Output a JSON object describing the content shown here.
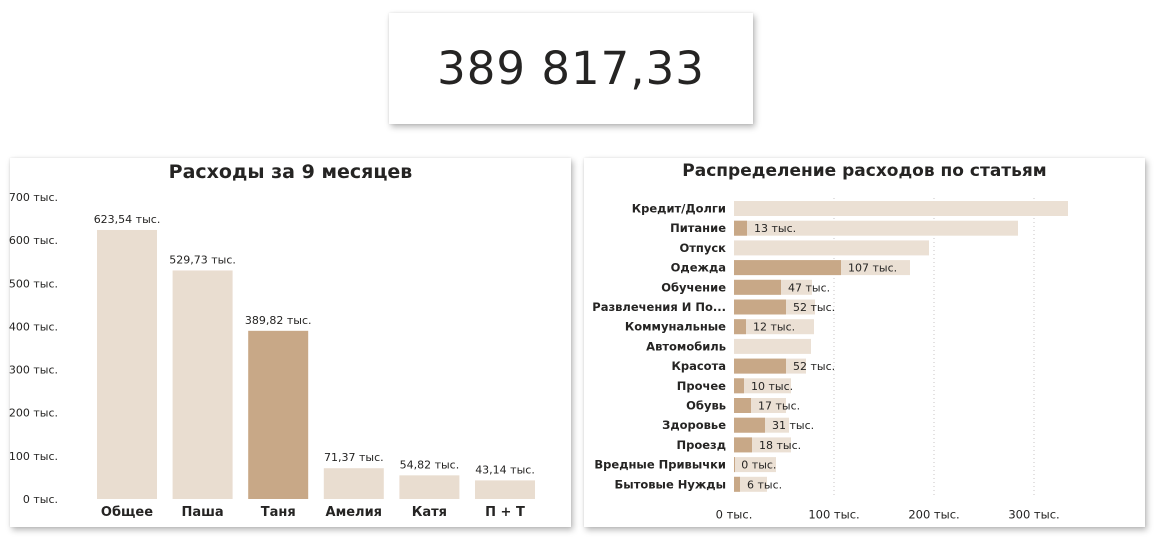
{
  "kpi": {
    "value": "389 817,33"
  },
  "chart_data": [
    {
      "type": "bar",
      "title": "Расходы за 9 месяцев",
      "categories": [
        "Общее",
        "Паша",
        "Таня",
        "Амелия",
        "Катя",
        "П + Т"
      ],
      "values": [
        623540,
        529730,
        389820,
        71370,
        54820,
        43140
      ],
      "data_labels": [
        "623,54 тыс.",
        "529,73 тыс.",
        "389,82 тыс.",
        "71,37 тыс.",
        "54,82 тыс.",
        "43,14 тыс."
      ],
      "highlighted_category": "Таня",
      "ylim": [
        0,
        700000
      ],
      "yticks": [
        0,
        100000,
        200000,
        300000,
        400000,
        500000,
        600000,
        700000
      ],
      "ytick_labels": [
        "0 тыс.",
        "100 тыс.",
        "200 тыс.",
        "300 тыс.",
        "400 тыс.",
        "500 тыс.",
        "600 тыс.",
        "700 тыс."
      ],
      "grid": false,
      "colors": {
        "base": "#e9ddd0",
        "highlight": "#c8a887"
      }
    },
    {
      "type": "bar",
      "orientation": "horizontal",
      "title": "Распределение расходов по статьям",
      "categories": [
        "Кредит/Долги",
        "Питание",
        "Отпуск",
        "Одежда",
        "Обучение",
        "Развлечения И По...",
        "Коммунальные",
        "Автомобиль",
        "Красота",
        "Прочее",
        "Обувь",
        "Здоровье",
        "Проезд",
        "Вредные Привычки",
        "Бытовые Нужды"
      ],
      "series": [
        {
          "role": "total",
          "values": [
            334000,
            284000,
            195000,
            176000,
            78000,
            81000,
            80000,
            77000,
            72000,
            57000,
            52000,
            55000,
            57000,
            42000,
            33000
          ]
        },
        {
          "role": "highlighted",
          "values": [
            0,
            13000,
            0,
            107000,
            47000,
            52000,
            12000,
            0,
            52000,
            10000,
            17000,
            31000,
            18000,
            300,
            6000
          ]
        }
      ],
      "data_labels": [
        "",
        "13 тыс.",
        "",
        "107 тыс.",
        "47 тыс.",
        "52 тыс.",
        "12 тыс.",
        "",
        "52 тыс.",
        "10 тыс.",
        "17 тыс.",
        "31 тыс.",
        "18 тыс.",
        "0 тыс.",
        "6 тыс."
      ],
      "xlim": [
        0,
        350000
      ],
      "xticks": [
        0,
        100000,
        200000,
        300000
      ],
      "xtick_labels": [
        "0 тыс.",
        "100 тыс.",
        "200 тыс.",
        "300 тыс."
      ],
      "grid": true,
      "colors": {
        "base": "#ebe0d4",
        "highlight": "#c8a887"
      }
    }
  ]
}
